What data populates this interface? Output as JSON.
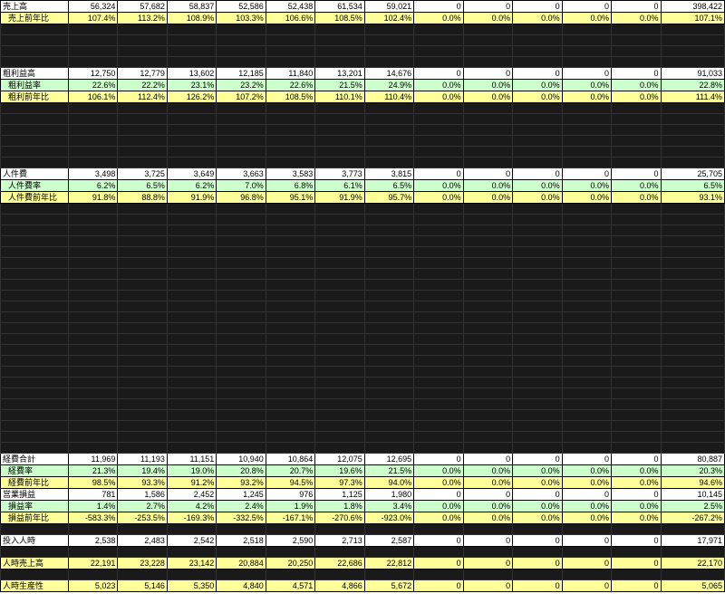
{
  "colors": {
    "white": "#ffffff",
    "yellow": "#ffff99",
    "green": "#ccffcc",
    "redacted": "#1a1a1a",
    "border": "#000000"
  },
  "columns": 14,
  "rows": [
    {
      "cls": "white",
      "label": "売上高",
      "labelCls": "label",
      "vals": [
        "56,324",
        "57,682",
        "58,837",
        "52,586",
        "52,438",
        "61,534",
        "59,021",
        "0",
        "0",
        "0",
        "0",
        "0",
        "398,422"
      ]
    },
    {
      "cls": "yellow",
      "label": "売上前年比",
      "labelCls": "indent",
      "vals": [
        "107.4%",
        "113.2%",
        "108.9%",
        "103.3%",
        "106.6%",
        "108.5%",
        "102.4%",
        "0.0%",
        "0.0%",
        "0.0%",
        "0.0%",
        "0.0%",
        "107.1%"
      ]
    },
    {
      "cls": "black",
      "label": "",
      "labelCls": "label",
      "vals": [
        "",
        "",
        "",
        "",
        "",
        "",
        "",
        "",
        "",
        "",
        "",
        "",
        ""
      ]
    },
    {
      "cls": "black",
      "label": "",
      "labelCls": "label",
      "vals": [
        "",
        "",
        "",
        "",
        "",
        "",
        "",
        "",
        "",
        "",
        "",
        "",
        ""
      ]
    },
    {
      "cls": "black",
      "label": "",
      "labelCls": "label",
      "vals": [
        "",
        "",
        "",
        "",
        "",
        "",
        "",
        "",
        "",
        "",
        "",
        "",
        ""
      ]
    },
    {
      "cls": "black",
      "label": "",
      "labelCls": "label",
      "vals": [
        "",
        "",
        "",
        "",
        "",
        "",
        "",
        "",
        "",
        "",
        "",
        "",
        ""
      ]
    },
    {
      "cls": "white",
      "label": "粗利益高",
      "labelCls": "label",
      "vals": [
        "12,750",
        "12,779",
        "13,602",
        "12,185",
        "11,840",
        "13,201",
        "14,676",
        "0",
        "0",
        "0",
        "0",
        "0",
        "91,033"
      ]
    },
    {
      "cls": "green",
      "label": "粗利益率",
      "labelCls": "indent",
      "vals": [
        "22.6%",
        "22.2%",
        "23.1%",
        "23.2%",
        "22.6%",
        "21.5%",
        "24.9%",
        "0.0%",
        "0.0%",
        "0.0%",
        "0.0%",
        "0.0%",
        "22.8%"
      ]
    },
    {
      "cls": "yellow",
      "label": "粗利前年比",
      "labelCls": "indent",
      "vals": [
        "106.1%",
        "112.4%",
        "126.2%",
        "107.2%",
        "108.5%",
        "110.1%",
        "110.4%",
        "0.0%",
        "0.0%",
        "0.0%",
        "0.0%",
        "0.0%",
        "111.4%"
      ]
    },
    {
      "cls": "black",
      "label": "",
      "labelCls": "label",
      "vals": [
        "",
        "",
        "",
        "",
        "",
        "",
        "",
        "",
        "",
        "",
        "",
        "",
        ""
      ]
    },
    {
      "cls": "black",
      "label": "",
      "labelCls": "label",
      "vals": [
        "",
        "",
        "",
        "",
        "",
        "",
        "",
        "",
        "",
        "",
        "",
        "",
        ""
      ]
    },
    {
      "cls": "black",
      "label": "",
      "labelCls": "label",
      "vals": [
        "",
        "",
        "",
        "",
        "",
        "",
        "",
        "",
        "",
        "",
        "",
        "",
        ""
      ]
    },
    {
      "cls": "black",
      "label": "",
      "labelCls": "label",
      "vals": [
        "",
        "",
        "",
        "",
        "",
        "",
        "",
        "",
        "",
        "",
        "",
        "",
        ""
      ]
    },
    {
      "cls": "black",
      "label": "",
      "labelCls": "label",
      "vals": [
        "",
        "",
        "",
        "",
        "",
        "",
        "",
        "",
        "",
        "",
        "",
        "",
        ""
      ]
    },
    {
      "cls": "black",
      "label": "",
      "labelCls": "label",
      "vals": [
        "",
        "",
        "",
        "",
        "",
        "",
        "",
        "",
        "",
        "",
        "",
        "",
        ""
      ]
    },
    {
      "cls": "white",
      "label": "人件費",
      "labelCls": "label",
      "vals": [
        "3,498",
        "3,725",
        "3,649",
        "3,663",
        "3,583",
        "3,773",
        "3,815",
        "0",
        "0",
        "0",
        "0",
        "0",
        "25,705"
      ]
    },
    {
      "cls": "green",
      "label": "人件費率",
      "labelCls": "indent",
      "vals": [
        "6.2%",
        "6.5%",
        "6.2%",
        "7.0%",
        "6.8%",
        "6.1%",
        "6.5%",
        "0.0%",
        "0.0%",
        "0.0%",
        "0.0%",
        "0.0%",
        "6.5%"
      ]
    },
    {
      "cls": "yellow",
      "label": "人件費前年比",
      "labelCls": "indent",
      "vals": [
        "91.8%",
        "88.8%",
        "91.9%",
        "96.8%",
        "95.1%",
        "91.9%",
        "95.7%",
        "0.0%",
        "0.0%",
        "0.0%",
        "0.0%",
        "0.0%",
        "93.1%"
      ]
    },
    {
      "cls": "black",
      "label": "",
      "labelCls": "label",
      "vals": [
        "",
        "",
        "",
        "",
        "",
        "",
        "",
        "",
        "",
        "",
        "",
        "",
        ""
      ]
    },
    {
      "cls": "black",
      "label": "",
      "labelCls": "label",
      "vals": [
        "",
        "",
        "",
        "",
        "",
        "",
        "",
        "",
        "",
        "",
        "",
        "",
        ""
      ]
    },
    {
      "cls": "black",
      "label": "",
      "labelCls": "label",
      "vals": [
        "",
        "",
        "",
        "",
        "",
        "",
        "",
        "",
        "",
        "",
        "",
        "",
        ""
      ]
    },
    {
      "cls": "black",
      "label": "",
      "labelCls": "label",
      "vals": [
        "",
        "",
        "",
        "",
        "",
        "",
        "",
        "",
        "",
        "",
        "",
        "",
        ""
      ]
    },
    {
      "cls": "black",
      "label": "",
      "labelCls": "label",
      "vals": [
        "",
        "",
        "",
        "",
        "",
        "",
        "",
        "",
        "",
        "",
        "",
        "",
        ""
      ]
    },
    {
      "cls": "black",
      "label": "",
      "labelCls": "label",
      "vals": [
        "",
        "",
        "",
        "",
        "",
        "",
        "",
        "",
        "",
        "",
        "",
        "",
        ""
      ]
    },
    {
      "cls": "black",
      "label": "",
      "labelCls": "label",
      "vals": [
        "",
        "",
        "",
        "",
        "",
        "",
        "",
        "",
        "",
        "",
        "",
        "",
        ""
      ]
    },
    {
      "cls": "black",
      "label": "",
      "labelCls": "label",
      "vals": [
        "",
        "",
        "",
        "",
        "",
        "",
        "",
        "",
        "",
        "",
        "",
        "",
        ""
      ]
    },
    {
      "cls": "black",
      "label": "",
      "labelCls": "label",
      "vals": [
        "",
        "",
        "",
        "",
        "",
        "",
        "",
        "",
        "",
        "",
        "",
        "",
        ""
      ]
    },
    {
      "cls": "black",
      "label": "",
      "labelCls": "label",
      "vals": [
        "",
        "",
        "",
        "",
        "",
        "",
        "",
        "",
        "",
        "",
        "",
        "",
        ""
      ]
    },
    {
      "cls": "black",
      "label": "",
      "labelCls": "label",
      "vals": [
        "",
        "",
        "",
        "",
        "",
        "",
        "",
        "",
        "",
        "",
        "",
        "",
        ""
      ]
    },
    {
      "cls": "black",
      "label": "",
      "labelCls": "label",
      "vals": [
        "",
        "",
        "",
        "",
        "",
        "",
        "",
        "",
        "",
        "",
        "",
        "",
        ""
      ]
    },
    {
      "cls": "black",
      "label": "",
      "labelCls": "label",
      "vals": [
        "",
        "",
        "",
        "",
        "",
        "",
        "",
        "",
        "",
        "",
        "",
        "",
        ""
      ]
    },
    {
      "cls": "black",
      "label": "",
      "labelCls": "label",
      "vals": [
        "",
        "",
        "",
        "",
        "",
        "",
        "",
        "",
        "",
        "",
        "",
        "",
        ""
      ]
    },
    {
      "cls": "black",
      "label": "",
      "labelCls": "label",
      "vals": [
        "",
        "",
        "",
        "",
        "",
        "",
        "",
        "",
        "",
        "",
        "",
        "",
        ""
      ]
    },
    {
      "cls": "black",
      "label": "",
      "labelCls": "label",
      "vals": [
        "",
        "",
        "",
        "",
        "",
        "",
        "",
        "",
        "",
        "",
        "",
        "",
        ""
      ]
    },
    {
      "cls": "black",
      "label": "",
      "labelCls": "label",
      "vals": [
        "",
        "",
        "",
        "",
        "",
        "",
        "",
        "",
        "",
        "",
        "",
        "",
        ""
      ]
    },
    {
      "cls": "black",
      "label": "",
      "labelCls": "label",
      "vals": [
        "",
        "",
        "",
        "",
        "",
        "",
        "",
        "",
        "",
        "",
        "",
        "",
        ""
      ]
    },
    {
      "cls": "black",
      "label": "",
      "labelCls": "label",
      "vals": [
        "",
        "",
        "",
        "",
        "",
        "",
        "",
        "",
        "",
        "",
        "",
        "",
        ""
      ]
    },
    {
      "cls": "black",
      "label": "",
      "labelCls": "label",
      "vals": [
        "",
        "",
        "",
        "",
        "",
        "",
        "",
        "",
        "",
        "",
        "",
        "",
        ""
      ]
    },
    {
      "cls": "black",
      "label": "",
      "labelCls": "label",
      "vals": [
        "",
        "",
        "",
        "",
        "",
        "",
        "",
        "",
        "",
        "",
        "",
        "",
        ""
      ]
    },
    {
      "cls": "black",
      "label": "",
      "labelCls": "label",
      "vals": [
        "",
        "",
        "",
        "",
        "",
        "",
        "",
        "",
        "",
        "",
        "",
        "",
        ""
      ]
    },
    {
      "cls": "black",
      "label": "",
      "labelCls": "label",
      "vals": [
        "",
        "",
        "",
        "",
        "",
        "",
        "",
        "",
        "",
        "",
        "",
        "",
        ""
      ]
    },
    {
      "cls": "white",
      "label": "経費合計",
      "labelCls": "label",
      "vals": [
        "11,969",
        "11,193",
        "11,151",
        "10,940",
        "10,864",
        "12,075",
        "12,695",
        "0",
        "0",
        "0",
        "0",
        "0",
        "80,887"
      ]
    },
    {
      "cls": "green",
      "label": "経費率",
      "labelCls": "indent",
      "vals": [
        "21.3%",
        "19.4%",
        "19.0%",
        "20.8%",
        "20.7%",
        "19.6%",
        "21.5%",
        "0.0%",
        "0.0%",
        "0.0%",
        "0.0%",
        "0.0%",
        "20.3%"
      ]
    },
    {
      "cls": "yellow",
      "label": "経費前年比",
      "labelCls": "indent",
      "vals": [
        "98.5%",
        "93.3%",
        "91.2%",
        "93.2%",
        "94.5%",
        "97.3%",
        "94.0%",
        "0.0%",
        "0.0%",
        "0.0%",
        "0.0%",
        "0.0%",
        "94.6%"
      ]
    },
    {
      "cls": "white",
      "label": "営業損益",
      "labelCls": "label",
      "vals": [
        "781",
        "1,586",
        "2,452",
        "1,245",
        "976",
        "1,125",
        "1,980",
        "0",
        "0",
        "0",
        "0",
        "0",
        "10,145"
      ]
    },
    {
      "cls": "green",
      "label": "損益率",
      "labelCls": "indent",
      "vals": [
        "1.4%",
        "2.7%",
        "4.2%",
        "2.4%",
        "1.9%",
        "1.8%",
        "3.4%",
        "0.0%",
        "0.0%",
        "0.0%",
        "0.0%",
        "0.0%",
        "2.5%"
      ]
    },
    {
      "cls": "yellow",
      "label": "損益前年比",
      "labelCls": "indent",
      "vals": [
        "-583.3%",
        "-253.5%",
        "-169.3%",
        "-332.5%",
        "-167.1%",
        "-270.6%",
        "-923.0%",
        "0.0%",
        "0.0%",
        "0.0%",
        "0.0%",
        "0.0%",
        "-267.2%"
      ]
    },
    {
      "cls": "black",
      "label": "",
      "labelCls": "label",
      "vals": [
        "",
        "",
        "",
        "",
        "",
        "",
        "",
        "",
        "",
        "",
        "",
        "",
        ""
      ]
    },
    {
      "cls": "white",
      "label": "投入人時",
      "labelCls": "label",
      "vals": [
        "2,538",
        "2,483",
        "2,542",
        "2,518",
        "2,590",
        "2,713",
        "2,587",
        "0",
        "0",
        "0",
        "0",
        "0",
        "17,971"
      ]
    },
    {
      "cls": "black",
      "label": "",
      "labelCls": "label",
      "vals": [
        "",
        "",
        "",
        "",
        "",
        "",
        "",
        "",
        "",
        "",
        "",
        "",
        ""
      ]
    },
    {
      "cls": "yellow",
      "label": "人時売上高",
      "labelCls": "label",
      "vals": [
        "22,191",
        "23,228",
        "23,142",
        "20,884",
        "20,250",
        "22,686",
        "22,812",
        "0",
        "0",
        "0",
        "0",
        "0",
        "22,170"
      ]
    },
    {
      "cls": "black",
      "label": "",
      "labelCls": "label",
      "vals": [
        "",
        "",
        "",
        "",
        "",
        "",
        "",
        "",
        "",
        "",
        "",
        "",
        ""
      ]
    },
    {
      "cls": "yellow",
      "label": "人時生産性",
      "labelCls": "label",
      "vals": [
        "5,023",
        "5,146",
        "5,350",
        "4,840",
        "4,571",
        "4,866",
        "5,672",
        "0",
        "0",
        "0",
        "0",
        "0",
        "5,065"
      ]
    }
  ]
}
